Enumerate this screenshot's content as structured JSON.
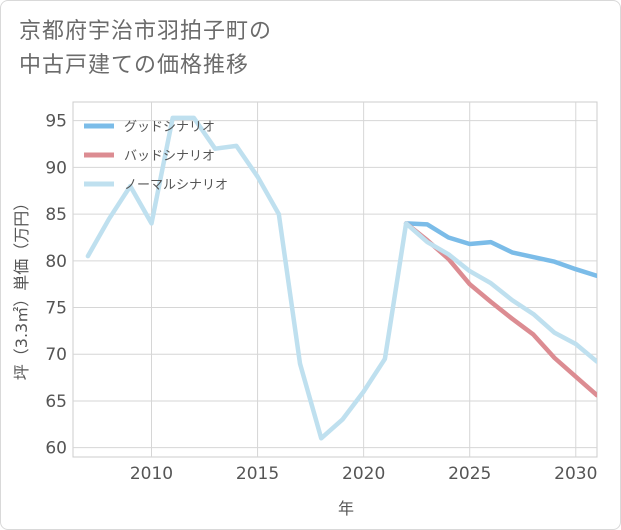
{
  "title_lines": [
    "京都府宇治市羽拍子町の",
    "中古戸建ての価格推移"
  ],
  "chart_data": {
    "type": "line",
    "title": "京都府宇治市羽拍子町の中古戸建ての価格推移",
    "xlabel": "年",
    "ylabel": "坪（3.3㎡）単価（万円）",
    "xlim": [
      2006.3,
      2031
    ],
    "ylim": [
      59,
      97
    ],
    "xticks": [
      2010,
      2015,
      2020,
      2025,
      2030
    ],
    "yticks": [
      60,
      65,
      70,
      75,
      80,
      85,
      90,
      95
    ],
    "grid": true,
    "legend_position": "top-left",
    "series": [
      {
        "name": "グッドシナリオ",
        "color": "#7bbce8",
        "x": [
          2022,
          2023,
          2024,
          2025,
          2026,
          2027,
          2028,
          2029,
          2030,
          2031
        ],
        "values": [
          84.0,
          83.9,
          82.5,
          81.8,
          82.0,
          80.9,
          80.4,
          79.9,
          79.1,
          78.4
        ]
      },
      {
        "name": "バッドシナリオ",
        "color": "#dc8c92",
        "x": [
          2022,
          2023,
          2024,
          2025,
          2026,
          2027,
          2028,
          2029,
          2030,
          2031
        ],
        "values": [
          84.0,
          82.2,
          80.2,
          77.5,
          75.6,
          73.8,
          72.1,
          69.6,
          67.6,
          65.6
        ]
      },
      {
        "name": "ノーマルシナリオ",
        "color": "#bfe0ef",
        "x": [
          2007,
          2008,
          2009,
          2010,
          2011,
          2012,
          2013,
          2014,
          2015,
          2016,
          2017,
          2018,
          2019,
          2020,
          2021,
          2022,
          2023,
          2024,
          2025,
          2026,
          2027,
          2028,
          2029,
          2030,
          2031
        ],
        "values": [
          80.5,
          84.5,
          88.0,
          84.0,
          95.3,
          95.3,
          92.0,
          92.3,
          89.0,
          85.0,
          69.0,
          61.0,
          63.0,
          66.0,
          69.5,
          84.0,
          82.0,
          80.7,
          78.9,
          77.6,
          75.8,
          74.3,
          72.3,
          71.1,
          69.2
        ]
      }
    ]
  }
}
